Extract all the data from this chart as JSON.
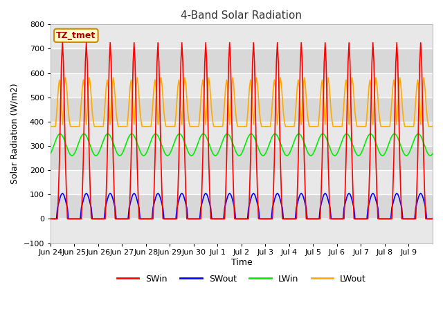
{
  "title": "4-Band Solar Radiation",
  "xlabel": "Time",
  "ylabel": "Solar Radiation (W/m2)",
  "ylim": [
    -100,
    800
  ],
  "yticks": [
    -100,
    0,
    100,
    200,
    300,
    400,
    500,
    600,
    700,
    800
  ],
  "background_color": "#ffffff",
  "plot_bg_color": "#f0f0f0",
  "grid_color": "#ffffff",
  "label_box_text": "TZ_tmet",
  "label_box_facecolor": "#ffffcc",
  "label_box_edgecolor": "#cc8800",
  "series_colors": {
    "SWin": "#ff0000",
    "SWout": "#0000ff",
    "LWin": "#00ee00",
    "LWout": "#ffaa00"
  },
  "legend_labels": [
    "SWin",
    "SWout",
    "LWin",
    "LWout"
  ],
  "tick_labels": [
    "Jun 24",
    "Jun 25",
    "Jun 26",
    "Jun 27",
    "Jun 28",
    "Jun 29",
    "Jun 30",
    "Jul 1",
    "Jul 2",
    "Jul 3",
    "Jul 4",
    "Jul 5",
    "Jul 6",
    "Jul 7",
    "Jul 8",
    "Jul 9"
  ]
}
